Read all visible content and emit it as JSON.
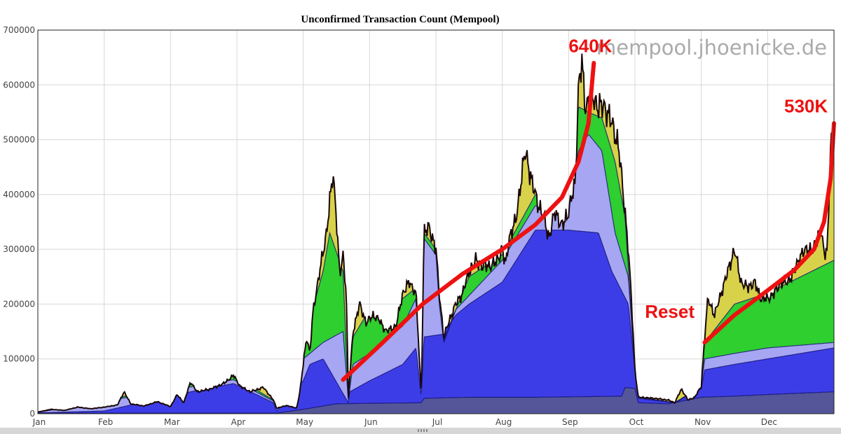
{
  "chart_data": {
    "type": "area",
    "title": "Unconfirmed Transaction Count (Mempool)",
    "watermark": "mempool.jhoenicke.de",
    "xlabel": "",
    "ylabel": "",
    "months": [
      "Jan",
      "Feb",
      "Mar",
      "Apr",
      "May",
      "Jun",
      "Jul",
      "Aug",
      "Sep",
      "Oct",
      "Nov",
      "Dec"
    ],
    "xlim": [
      0,
      12
    ],
    "ylim": [
      0,
      700000
    ],
    "yticks": [
      0,
      100000,
      200000,
      300000,
      400000,
      500000,
      600000,
      700000
    ],
    "grid": true,
    "legend": "none",
    "colors": {
      "base": "#55559a",
      "band_blue": "#3d3de8",
      "band_light_blue": "#a6a6f2",
      "band_green": "#2ecf2e",
      "band_light_green": "#a8eca8",
      "band_yellow": "#d8d24a",
      "total_line": "#1a0808",
      "trend": "#ee1111"
    },
    "series": {
      "total": [
        [
          0,
          3000
        ],
        [
          0.2,
          8000
        ],
        [
          0.4,
          6000
        ],
        [
          0.6,
          12000
        ],
        [
          0.8,
          9000
        ],
        [
          1.0,
          12000
        ],
        [
          1.2,
          16000
        ],
        [
          1.3,
          40000
        ],
        [
          1.4,
          18000
        ],
        [
          1.6,
          14000
        ],
        [
          1.8,
          22000
        ],
        [
          2.0,
          13000
        ],
        [
          2.1,
          35000
        ],
        [
          2.2,
          20000
        ],
        [
          2.3,
          58000
        ],
        [
          2.4,
          40000
        ],
        [
          2.6,
          45000
        ],
        [
          2.8,
          55000
        ],
        [
          2.95,
          70000
        ],
        [
          3.05,
          50000
        ],
        [
          3.2,
          40000
        ],
        [
          3.4,
          48000
        ],
        [
          3.55,
          25000
        ],
        [
          3.6,
          10000
        ],
        [
          3.75,
          15000
        ],
        [
          3.9,
          10000
        ],
        [
          3.95,
          40000
        ],
        [
          4.05,
          140000
        ],
        [
          4.1,
          110000
        ],
        [
          4.15,
          190000
        ],
        [
          4.25,
          260000
        ],
        [
          4.35,
          330000
        ],
        [
          4.45,
          440000
        ],
        [
          4.5,
          360000
        ],
        [
          4.55,
          250000
        ],
        [
          4.6,
          290000
        ],
        [
          4.65,
          220000
        ],
        [
          4.68,
          30000
        ],
        [
          4.75,
          150000
        ],
        [
          4.85,
          200000
        ],
        [
          4.95,
          165000
        ],
        [
          5.05,
          180000
        ],
        [
          5.15,
          170000
        ],
        [
          5.25,
          150000
        ],
        [
          5.4,
          160000
        ],
        [
          5.5,
          220000
        ],
        [
          5.6,
          240000
        ],
        [
          5.7,
          220000
        ],
        [
          5.78,
          30000
        ],
        [
          5.82,
          330000
        ],
        [
          5.9,
          340000
        ],
        [
          6.0,
          300000
        ],
        [
          6.05,
          220000
        ],
        [
          6.12,
          140000
        ],
        [
          6.2,
          170000
        ],
        [
          6.3,
          200000
        ],
        [
          6.4,
          220000
        ],
        [
          6.5,
          260000
        ],
        [
          6.6,
          280000
        ],
        [
          6.7,
          270000
        ],
        [
          6.8,
          270000
        ],
        [
          6.9,
          275000
        ],
        [
          7.0,
          300000
        ],
        [
          7.05,
          270000
        ],
        [
          7.1,
          320000
        ],
        [
          7.2,
          350000
        ],
        [
          7.3,
          440000
        ],
        [
          7.35,
          480000
        ],
        [
          7.45,
          420000
        ],
        [
          7.55,
          380000
        ],
        [
          7.65,
          350000
        ],
        [
          7.7,
          320000
        ],
        [
          7.8,
          370000
        ],
        [
          7.9,
          340000
        ],
        [
          8.0,
          370000
        ],
        [
          8.1,
          420000
        ],
        [
          8.15,
          600000
        ],
        [
          8.2,
          640000
        ],
        [
          8.25,
          560000
        ],
        [
          8.35,
          580000
        ],
        [
          8.45,
          560000
        ],
        [
          8.55,
          560000
        ],
        [
          8.65,
          530000
        ],
        [
          8.75,
          490000
        ],
        [
          8.8,
          430000
        ],
        [
          8.85,
          370000
        ],
        [
          8.9,
          300000
        ],
        [
          8.95,
          200000
        ],
        [
          9.0,
          80000
        ],
        [
          9.05,
          30000
        ],
        [
          9.3,
          28000
        ],
        [
          9.5,
          25000
        ],
        [
          9.6,
          20000
        ],
        [
          9.7,
          45000
        ],
        [
          9.8,
          25000
        ],
        [
          9.9,
          30000
        ],
        [
          10.0,
          50000
        ],
        [
          10.05,
          140000
        ],
        [
          10.1,
          210000
        ],
        [
          10.2,
          180000
        ],
        [
          10.3,
          220000
        ],
        [
          10.4,
          260000
        ],
        [
          10.5,
          300000
        ],
        [
          10.6,
          240000
        ],
        [
          10.7,
          230000
        ],
        [
          10.8,
          240000
        ],
        [
          10.9,
          210000
        ],
        [
          11.0,
          210000
        ],
        [
          11.1,
          220000
        ],
        [
          11.2,
          240000
        ],
        [
          11.3,
          240000
        ],
        [
          11.4,
          260000
        ],
        [
          11.5,
          290000
        ],
        [
          11.6,
          300000
        ],
        [
          11.7,
          300000
        ],
        [
          11.8,
          340000
        ],
        [
          11.85,
          290000
        ],
        [
          11.9,
          300000
        ],
        [
          11.95,
          500000
        ],
        [
          12.0,
          490000
        ]
      ],
      "base": [
        [
          0,
          1000
        ],
        [
          3.6,
          1000
        ],
        [
          4.0,
          8000
        ],
        [
          4.5,
          18000
        ],
        [
          5.0,
          19000
        ],
        [
          5.78,
          20000
        ],
        [
          5.82,
          28000
        ],
        [
          6.5,
          30000
        ],
        [
          7.5,
          30000
        ],
        [
          8.8,
          32000
        ],
        [
          8.85,
          48000
        ],
        [
          9.0,
          46000
        ],
        [
          9.05,
          20000
        ],
        [
          9.5,
          18000
        ],
        [
          10.0,
          30000
        ],
        [
          10.5,
          32000
        ],
        [
          11.0,
          35000
        ],
        [
          12.0,
          40000
        ]
      ],
      "blue_top": [
        [
          0,
          1500
        ],
        [
          1.0,
          5000
        ],
        [
          2.3,
          40000
        ],
        [
          2.95,
          55000
        ],
        [
          3.55,
          20000
        ],
        [
          3.6,
          5000
        ],
        [
          4.0,
          60000
        ],
        [
          4.1,
          90000
        ],
        [
          4.3,
          100000
        ],
        [
          4.68,
          20000
        ],
        [
          4.7,
          40000
        ],
        [
          5.0,
          60000
        ],
        [
          5.5,
          90000
        ],
        [
          5.7,
          120000
        ],
        [
          5.78,
          28000
        ],
        [
          5.82,
          140000
        ],
        [
          6.1,
          145000
        ],
        [
          6.3,
          180000
        ],
        [
          6.5,
          200000
        ],
        [
          7.0,
          240000
        ],
        [
          7.5,
          335000
        ],
        [
          8.0,
          335000
        ],
        [
          8.45,
          330000
        ],
        [
          8.65,
          260000
        ],
        [
          8.9,
          200000
        ],
        [
          9.0,
          80000
        ],
        [
          9.05,
          28000
        ],
        [
          9.6,
          20000
        ],
        [
          10.0,
          45000
        ],
        [
          10.05,
          80000
        ],
        [
          10.5,
          90000
        ],
        [
          11.0,
          100000
        ],
        [
          11.5,
          110000
        ],
        [
          12.0,
          120000
        ]
      ],
      "light_blue_top": [
        [
          0,
          2500
        ],
        [
          2.95,
          62000
        ],
        [
          3.55,
          23000
        ],
        [
          4.0,
          100000
        ],
        [
          4.3,
          130000
        ],
        [
          4.6,
          150000
        ],
        [
          4.68,
          25000
        ],
        [
          4.75,
          90000
        ],
        [
          5.0,
          110000
        ],
        [
          5.5,
          160000
        ],
        [
          5.7,
          210000
        ],
        [
          5.78,
          30000
        ],
        [
          5.82,
          320000
        ],
        [
          6.0,
          290000
        ],
        [
          6.05,
          200000
        ],
        [
          6.12,
          130000
        ],
        [
          6.3,
          190000
        ],
        [
          7.0,
          280000
        ],
        [
          7.5,
          380000
        ],
        [
          8.0,
          370000
        ],
        [
          8.15,
          480000
        ],
        [
          8.3,
          510000
        ],
        [
          8.5,
          480000
        ],
        [
          8.7,
          330000
        ],
        [
          8.9,
          250000
        ],
        [
          9.0,
          80000
        ],
        [
          9.05,
          30000
        ],
        [
          9.6,
          20000
        ],
        [
          10.0,
          50000
        ],
        [
          10.05,
          100000
        ],
        [
          10.5,
          110000
        ],
        [
          11.0,
          120000
        ],
        [
          12.0,
          130000
        ]
      ],
      "green_top": [
        [
          0,
          3000
        ],
        [
          2.95,
          68000
        ],
        [
          3.55,
          25000
        ],
        [
          4.0,
          130000
        ],
        [
          4.3,
          260000
        ],
        [
          4.4,
          330000
        ],
        [
          4.6,
          260000
        ],
        [
          4.68,
          28000
        ],
        [
          4.75,
          140000
        ],
        [
          5.0,
          190000
        ],
        [
          5.5,
          210000
        ],
        [
          5.7,
          230000
        ],
        [
          5.78,
          30000
        ],
        [
          5.82,
          330000
        ],
        [
          6.0,
          300000
        ],
        [
          6.12,
          135000
        ],
        [
          6.5,
          250000
        ],
        [
          7.0,
          290000
        ],
        [
          7.5,
          400000
        ],
        [
          8.0,
          400000
        ],
        [
          8.15,
          560000
        ],
        [
          8.3,
          550000
        ],
        [
          8.5,
          540000
        ],
        [
          8.7,
          460000
        ],
        [
          8.85,
          360000
        ],
        [
          9.0,
          80000
        ],
        [
          9.05,
          30000
        ],
        [
          9.6,
          20000
        ],
        [
          10.0,
          50000
        ],
        [
          10.05,
          130000
        ],
        [
          10.5,
          200000
        ],
        [
          11.0,
          220000
        ],
        [
          11.5,
          250000
        ],
        [
          12.0,
          280000
        ]
      ],
      "red_trend_1": [
        [
          4.6,
          62000
        ],
        [
          5.2,
          130000
        ],
        [
          5.8,
          200000
        ],
        [
          6.4,
          255000
        ],
        [
          7.0,
          300000
        ],
        [
          7.5,
          345000
        ],
        [
          7.9,
          395000
        ],
        [
          8.15,
          460000
        ],
        [
          8.3,
          530000
        ],
        [
          8.38,
          640000
        ]
      ],
      "red_trend_2": [
        [
          10.05,
          130000
        ],
        [
          10.5,
          180000
        ],
        [
          11.0,
          225000
        ],
        [
          11.4,
          262000
        ],
        [
          11.7,
          300000
        ],
        [
          11.85,
          350000
        ],
        [
          11.95,
          430000
        ],
        [
          12.0,
          530000
        ]
      ]
    },
    "annotations": [
      {
        "text": "640K",
        "x": 8.0,
        "y": 660000
      },
      {
        "text": "530K",
        "x": 11.25,
        "y": 550000
      },
      {
        "text": "Reset",
        "x": 9.15,
        "y": 175000
      }
    ]
  }
}
